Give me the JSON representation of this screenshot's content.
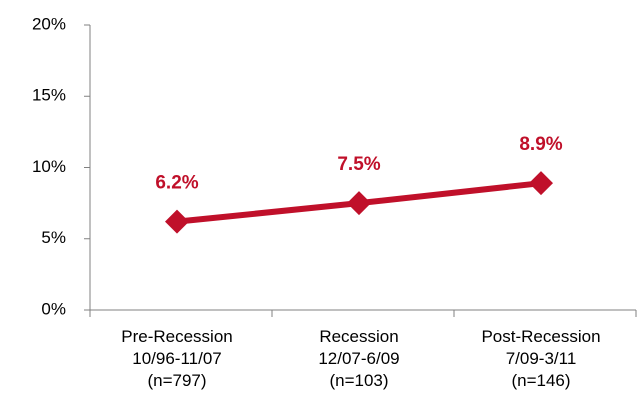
{
  "chart_data": {
    "type": "line",
    "categories": [
      "Pre-Recession\n10/96-11/07\n(n=797)",
      "Recession\n12/07-6/09\n(n=103)",
      "Post-Recession\n7/09-3/11\n(n=146)"
    ],
    "values": [
      6.2,
      7.5,
      8.9
    ],
    "value_labels": [
      "6.2%",
      "7.5%",
      "8.9%"
    ],
    "color": "#c0102a",
    "ylim": [
      0,
      20
    ],
    "yticks": [
      {
        "value": 0,
        "label": "0%"
      },
      {
        "value": 5,
        "label": "5%"
      },
      {
        "value": 10,
        "label": "10%"
      },
      {
        "value": 15,
        "label": "15%"
      },
      {
        "value": 20,
        "label": "20%"
      }
    ],
    "grid": false
  }
}
